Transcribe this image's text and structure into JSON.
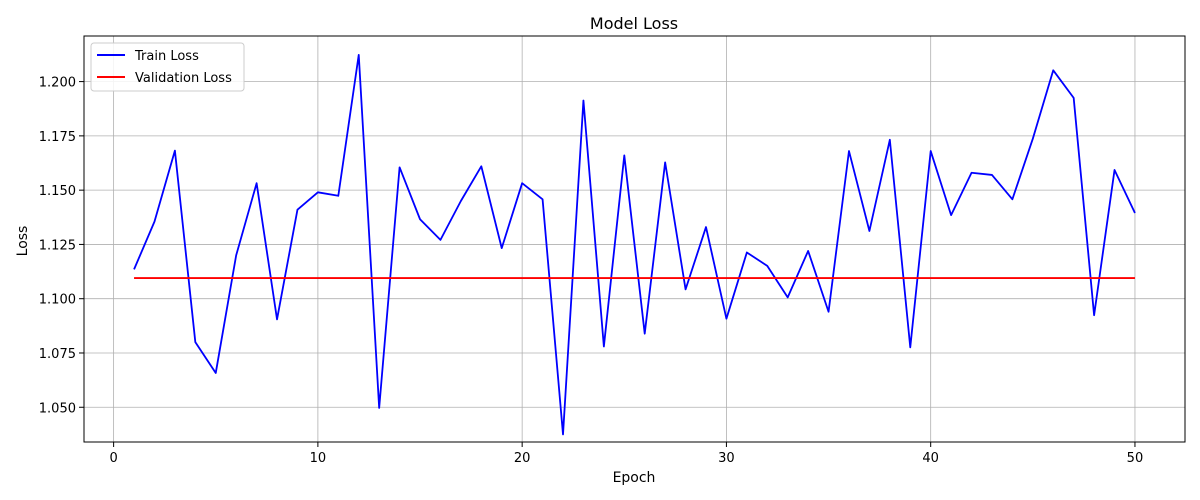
{
  "chart_data": {
    "type": "line",
    "title": "Model Loss",
    "xlabel": "Epoch",
    "ylabel": "Loss",
    "xlim": [
      -1.45,
      52.45
    ],
    "ylim": [
      1.034,
      1.221
    ],
    "xticks": [
      0,
      10,
      20,
      30,
      40,
      50
    ],
    "yticks": [
      1.05,
      1.075,
      1.1,
      1.125,
      1.15,
      1.175,
      1.2
    ],
    "xtick_labels": [
      "0",
      "10",
      "20",
      "30",
      "40",
      "50"
    ],
    "ytick_labels": [
      "1.050",
      "1.075",
      "1.100",
      "1.125",
      "1.150",
      "1.175",
      "1.200"
    ],
    "grid": true,
    "legend_position": "upper-left",
    "x": [
      1,
      2,
      3,
      4,
      5,
      6,
      7,
      8,
      9,
      10,
      11,
      12,
      13,
      14,
      15,
      16,
      17,
      18,
      19,
      20,
      21,
      22,
      23,
      24,
      25,
      26,
      27,
      28,
      29,
      30,
      31,
      32,
      33,
      34,
      35,
      36,
      37,
      38,
      39,
      40,
      41,
      42,
      43,
      44,
      45,
      46,
      47,
      48,
      49,
      50
    ],
    "series": [
      {
        "name": "Train Loss",
        "color": "#0000ff",
        "values": [
          1.1135,
          1.1355,
          1.1682,
          1.08,
          1.0658,
          1.12,
          1.1532,
          1.0905,
          1.141,
          1.149,
          1.1474,
          1.2123,
          1.0497,
          1.1605,
          1.1366,
          1.1271,
          1.145,
          1.161,
          1.1233,
          1.1532,
          1.1458,
          1.0375,
          1.1913,
          1.078,
          1.166,
          1.0839,
          1.1628,
          1.1043,
          1.133,
          1.0908,
          1.1213,
          1.1151,
          1.1006,
          1.122,
          1.094,
          1.168,
          1.1312,
          1.1732,
          1.0776,
          1.168,
          1.1385,
          1.158,
          1.157,
          1.1458,
          1.1737,
          1.2052,
          1.1925,
          1.0924,
          1.1593,
          1.1395
        ]
      },
      {
        "name": "Validation Loss",
        "color": "#ff0000",
        "values": [
          1.1095,
          1.1095,
          1.1095,
          1.1095,
          1.1095,
          1.1095,
          1.1095,
          1.1095,
          1.1095,
          1.1095,
          1.1095,
          1.1095,
          1.1095,
          1.1095,
          1.1095,
          1.1095,
          1.1095,
          1.1095,
          1.1095,
          1.1095,
          1.1095,
          1.1095,
          1.1095,
          1.1095,
          1.1095,
          1.1095,
          1.1095,
          1.1095,
          1.1095,
          1.1095,
          1.1095,
          1.1095,
          1.1095,
          1.1095,
          1.1095,
          1.1095,
          1.1095,
          1.1095,
          1.1095,
          1.1095,
          1.1095,
          1.1095,
          1.1095,
          1.1095,
          1.1095,
          1.1095,
          1.1095,
          1.1095,
          1.1095,
          1.1095
        ]
      }
    ]
  }
}
